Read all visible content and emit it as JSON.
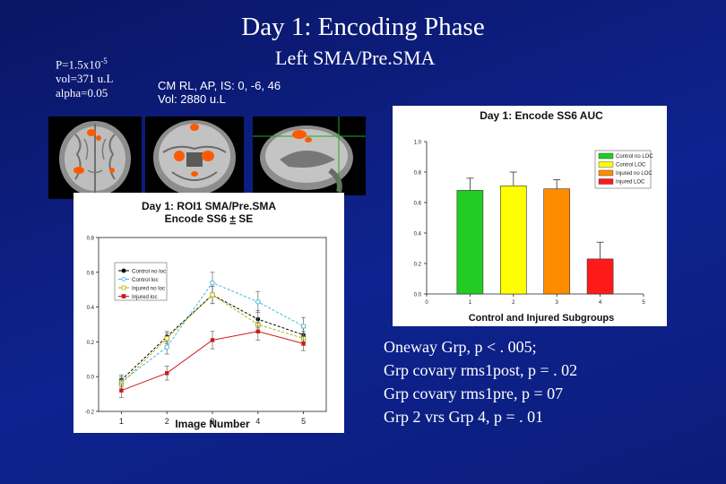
{
  "slide": {
    "title": "Day 1:  Encoding Phase",
    "subtitle": "Left SMA/Pre.SMA",
    "stats": {
      "p_prefix": "P=1.5x10",
      "p_exponent": "-5",
      "vol": "vol=371 u.L",
      "alpha": "alpha=0.05"
    },
    "coords": {
      "line1": "CM RL, AP, IS: 0, -6, 46",
      "line2": "Vol: 2880 u.L"
    },
    "findings": [
      "Oneway Grp, p < . 005;",
      "Grp covary rms1post, p = . 02",
      "Grp covary rms1pre, p = 07",
      "Grp 2 vrs Grp 4, p = . 01"
    ]
  },
  "colors": {
    "background": "#0b1a78",
    "bar_control_no_loc": "#22cc22",
    "bar_control_loc": "#ffff00",
    "bar_injured_no_loc": "#ff8c00",
    "bar_injured_loc": "#ff1a1a",
    "line_control_no_loc": "#000000",
    "line_control_loc": "#3fb7e0",
    "line_injured_no_loc": "#b5b000",
    "line_injured_loc": "#cc1a1a",
    "activation": "#ff5a00",
    "crosshair": "#22aa22"
  },
  "chart_data": [
    {
      "type": "line",
      "title_line1": "Day 1: ROI1 SMA/Pre.SMA",
      "title_line2_prefix": "Encode SS6 ",
      "title_line2_pm": "±",
      "title_line2_suffix": " SE",
      "xlabel": "Image Number",
      "ylabel": "",
      "x": [
        1,
        2,
        3,
        4,
        5
      ],
      "x_ticks": [
        "1",
        "2",
        "3",
        "4",
        "5"
      ],
      "xlim": [
        0.5,
        5.5
      ],
      "ylim": [
        -0.2,
        0.8
      ],
      "y_ticks": [
        "-0.2",
        "0.0",
        "0.2",
        "0.4",
        "0.6",
        "0.8"
      ],
      "legend_position": "upper-left",
      "series": [
        {
          "name": "Control no loc",
          "values": [
            -0.02,
            0.23,
            0.47,
            0.33,
            0.24
          ],
          "err": [
            0.03,
            0.03,
            0.05,
            0.05,
            0.04
          ]
        },
        {
          "name": "Control loc",
          "values": [
            -0.03,
            0.17,
            0.54,
            0.43,
            0.29
          ],
          "err": [
            0.03,
            0.04,
            0.06,
            0.06,
            0.05
          ]
        },
        {
          "name": "Injured no loc",
          "values": [
            -0.04,
            0.22,
            0.47,
            0.3,
            0.22
          ],
          "err": [
            0.03,
            0.03,
            0.05,
            0.04,
            0.04
          ]
        },
        {
          "name": "Injured loc",
          "values": [
            -0.08,
            0.02,
            0.21,
            0.26,
            0.19
          ],
          "err": [
            0.04,
            0.04,
            0.05,
            0.05,
            0.04
          ]
        }
      ]
    },
    {
      "type": "bar",
      "title": "Day 1: Encode SS6 AUC",
      "xlabel": "Control and Injured Subgroups",
      "ylabel": "",
      "x": [
        1,
        2,
        3,
        4
      ],
      "xlim": [
        0,
        5
      ],
      "x_ticks": [
        "0",
        "1",
        "2",
        "3",
        "4",
        "5"
      ],
      "ylim": [
        0,
        1.0
      ],
      "y_ticks": [
        "0.0",
        "0.2",
        "0.4",
        "0.6",
        "0.8",
        "1.0"
      ],
      "legend_position": "upper-right",
      "categories": [
        "Control no LOC",
        "Control LOC",
        "Injured no LOC",
        "Injured LOC"
      ],
      "values": [
        0.68,
        0.71,
        0.69,
        0.23
      ],
      "err": [
        0.08,
        0.09,
        0.06,
        0.11
      ]
    }
  ]
}
